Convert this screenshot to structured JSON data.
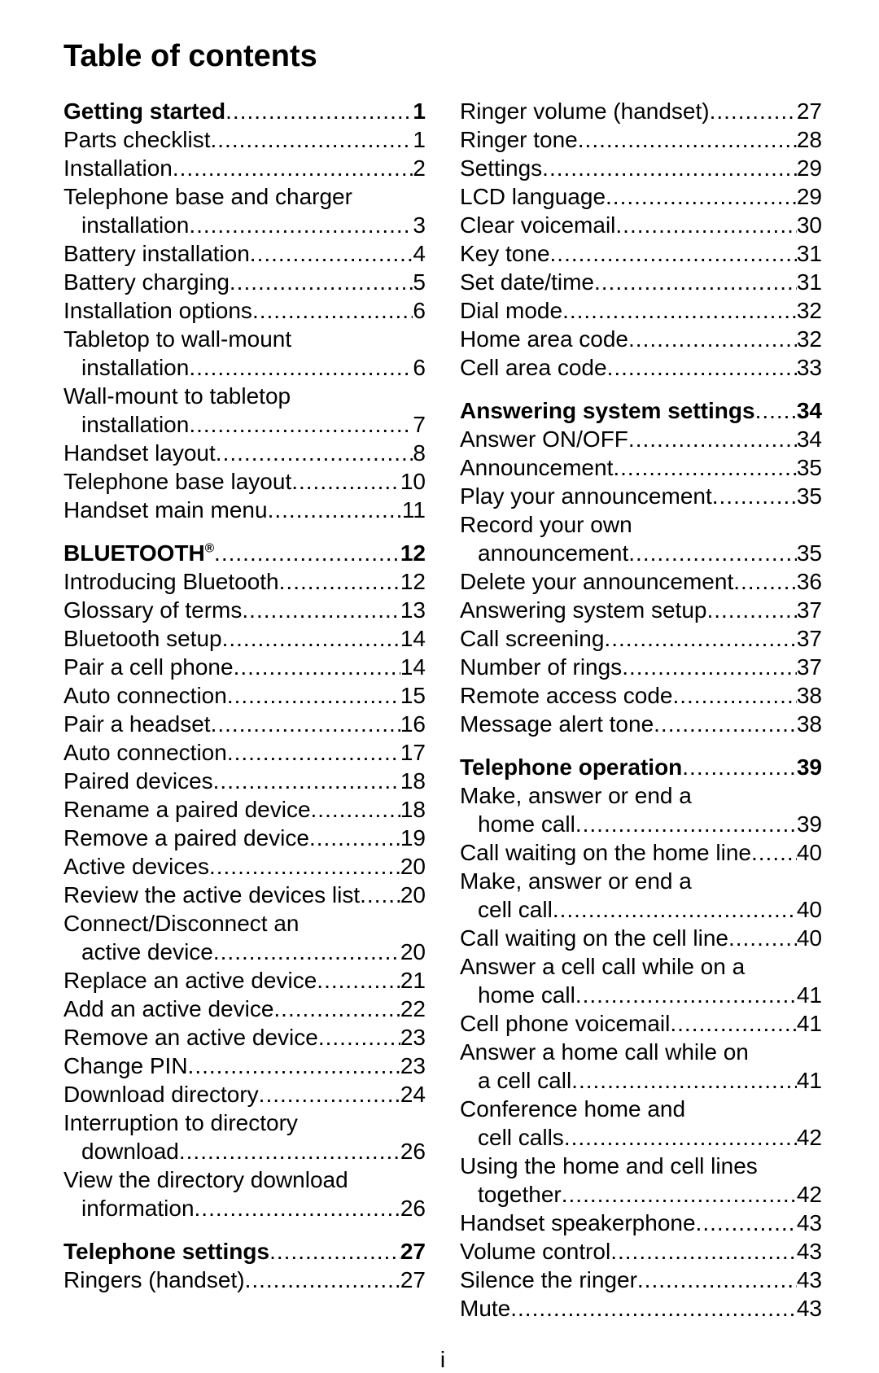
{
  "title": "Table of contents",
  "page_number_label": "i",
  "typography": {
    "title_fontsize": 38,
    "body_fontsize": 28,
    "font_family": "Arial",
    "heading_weight": "bold"
  },
  "colors": {
    "background": "#ffffff",
    "text": "#000000"
  },
  "left": [
    {
      "heading": {
        "label": "Getting started",
        "page": "1"
      },
      "items": [
        {
          "label": "Parts checklist",
          "page": "1"
        },
        {
          "label": "Installation",
          "page": "2"
        },
        {
          "label": "Telephone base and charger",
          "cont": "installation",
          "page": "3"
        },
        {
          "label": "Battery installation",
          "page": "4"
        },
        {
          "label": "Battery charging",
          "page": "5"
        },
        {
          "label": "Installation options",
          "page": "6"
        },
        {
          "label": "Tabletop to wall-mount",
          "cont": "installation",
          "page": "6"
        },
        {
          "label": "Wall-mount to tabletop",
          "cont": "installation",
          "page": "7"
        },
        {
          "label": "Handset layout",
          "page": "8"
        },
        {
          "label": "Telephone base layout",
          "page": "10"
        },
        {
          "label": "Handset main menu",
          "page": "11"
        }
      ]
    },
    {
      "heading": {
        "label": "BLUETOOTH",
        "trademark": true,
        "page": "12"
      },
      "items": [
        {
          "label": "Introducing Bluetooth",
          "page": "12"
        },
        {
          "label": "Glossary of terms",
          "page": "13"
        },
        {
          "label": "Bluetooth setup",
          "page": "14"
        },
        {
          "label": "Pair a cell phone",
          "page": "14"
        },
        {
          "label": "Auto connection",
          "page": "15"
        },
        {
          "label": "Pair a headset",
          "page": "16"
        },
        {
          "label": "Auto connection",
          "page": "17"
        },
        {
          "label": "Paired devices",
          "page": "18"
        },
        {
          "label": "Rename a paired device",
          "page": "18"
        },
        {
          "label": "Remove a paired device",
          "page": "19"
        },
        {
          "label": "Active devices",
          "page": "20"
        },
        {
          "label": "Review the active devices list",
          "page": "20"
        },
        {
          "label": "Connect/Disconnect an",
          "cont": "active device",
          "page": "20"
        },
        {
          "label": "Replace an active device",
          "page": "21"
        },
        {
          "label": "Add an active device",
          "page": "22"
        },
        {
          "label": "Remove an active device",
          "page": "23"
        },
        {
          "label": "Change PIN",
          "page": "23"
        },
        {
          "label": "Download directory",
          "page": "24"
        },
        {
          "label": "Interruption to directory",
          "cont": "download",
          "page": "26"
        },
        {
          "label": "View the directory download",
          "cont": "information",
          "page": "26"
        }
      ]
    },
    {
      "heading": {
        "label": "Telephone settings",
        "page": "27"
      },
      "items": [
        {
          "label": "Ringers (handset)",
          "page": "27"
        }
      ]
    }
  ],
  "right": [
    {
      "heading": null,
      "items": [
        {
          "label": "Ringer volume (handset)",
          "page": "27"
        },
        {
          "label": "Ringer tone",
          "page": "28"
        },
        {
          "label": "Settings",
          "page": "29"
        },
        {
          "label": "LCD language",
          "page": "29"
        },
        {
          "label": "Clear voicemail",
          "page": "30"
        },
        {
          "label": "Key tone",
          "page": "31"
        },
        {
          "label": "Set date/time",
          "page": "31"
        },
        {
          "label": "Dial mode",
          "page": "32"
        },
        {
          "label": "Home area code",
          "page": "32"
        },
        {
          "label": "Cell area code",
          "page": "33"
        }
      ]
    },
    {
      "heading": {
        "label": "Answering system settings",
        "page": "34"
      },
      "items": [
        {
          "label": "Answer ON/OFF",
          "page": "34"
        },
        {
          "label": "Announcement",
          "page": "35"
        },
        {
          "label": "Play your announcement",
          "page": "35"
        },
        {
          "label": "Record your own",
          "cont": "announcement",
          "page": "35"
        },
        {
          "label": "Delete your announcement",
          "page": "36"
        },
        {
          "label": "Answering system setup",
          "page": "37"
        },
        {
          "label": "Call screening",
          "page": "37"
        },
        {
          "label": "Number of rings",
          "page": "37"
        },
        {
          "label": "Remote access code",
          "page": "38"
        },
        {
          "label": "Message alert tone",
          "page": "38"
        }
      ]
    },
    {
      "heading": {
        "label": "Telephone operation",
        "page": "39"
      },
      "items": [
        {
          "label": "Make, answer or end a",
          "cont": "home call",
          "page": "39"
        },
        {
          "label": "Call waiting on the home line",
          "page": "40"
        },
        {
          "label": "Make, answer or end a",
          "cont": "cell call",
          "page": "40"
        },
        {
          "label": "Call waiting on the cell line",
          "page": "40"
        },
        {
          "label": "Answer a cell call while on a",
          "cont": "home call",
          "page": "41"
        },
        {
          "label": "Cell phone voicemail",
          "page": "41"
        },
        {
          "label": "Answer a home call while on",
          "cont": "a cell call",
          "page": "41"
        },
        {
          "label": "Conference home and",
          "cont": "cell calls",
          "page": "42"
        },
        {
          "label": "Using the home and cell lines",
          "cont": "together",
          "page": "42"
        },
        {
          "label": "Handset speakerphone",
          "page": "43"
        },
        {
          "label": "Volume control",
          "page": "43"
        },
        {
          "label": "Silence the ringer",
          "page": "43"
        },
        {
          "label": "Mute",
          "page": "43"
        }
      ]
    }
  ]
}
